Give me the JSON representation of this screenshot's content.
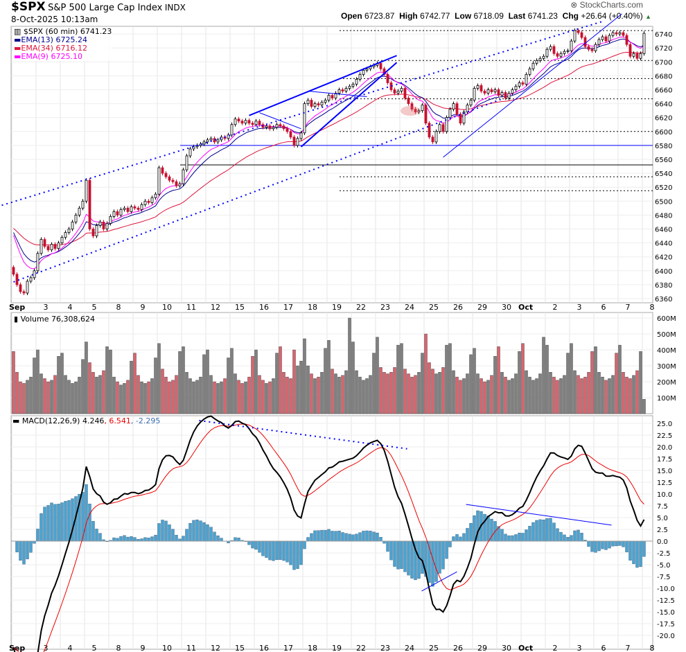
{
  "header": {
    "symbol": "$SPX",
    "name": "S&P 500 Large Cap Index",
    "exchange": "INDX",
    "datetime": "8-Oct-2025 10:13am",
    "brand": "StockCharts.com",
    "open_label": "Open",
    "open": "6723.87",
    "high_label": "High",
    "high": "6742.77",
    "low_label": "Low",
    "low": "6718.09",
    "last_label": "Last",
    "last": "6741.23",
    "chg_label": "Chg",
    "chg": "+26.64 (+0.40%)"
  },
  "legend": {
    "price": "$SPX (60 min) 6741.23",
    "ema13": "EMA(13) 6725.24",
    "ema34": "EMA(34) 6716.12",
    "ema9": "EMA(9) 6725.10",
    "volume": "Volume 76,308,624",
    "macd_label": "MACD(12,26,9) 4.246",
    "macd_signal": ", 6.541",
    "macd_hist": ", -2.295"
  },
  "colors": {
    "up": "#000000",
    "down": "#c8102e",
    "vol_up": "#808080",
    "vol_down": "#d9646e",
    "ema13": "#00008b",
    "ema34": "#dc143c",
    "ema9": "#ff00ff",
    "hist": "#4aa3d0",
    "trend": "#0000ff"
  },
  "chart_data": {
    "type": "candlestick",
    "title": "$SPX S&P 500 Large Cap Index INDX",
    "interval": "60 min",
    "days": [
      "Sep",
      "3",
      "4",
      "5",
      "8",
      "9",
      "10",
      "11",
      "12",
      "15",
      "16",
      "17",
      "18",
      "19",
      "22",
      "23",
      "24",
      "25",
      "26",
      "29",
      "30",
      "Oct",
      "2",
      "3",
      "6",
      "7",
      "8"
    ],
    "closes": [
      [
        6395,
        6380,
        6370,
        6368,
        6385,
        6390,
        6400
      ],
      [
        6425,
        6445,
        6435,
        6430,
        6438,
        6432,
        6440
      ],
      [
        6448,
        6455,
        6460,
        6470,
        6480,
        6490,
        6500
      ],
      [
        6530,
        6460,
        6450,
        6465,
        6470,
        6460,
        6468
      ],
      [
        6478,
        6485,
        6480,
        6488,
        6490,
        6485,
        6492
      ],
      [
        6490,
        6488,
        6495,
        6500,
        6498,
        6505,
        6510
      ],
      [
        6548,
        6540,
        6535,
        6530,
        6528,
        6522,
        6525
      ],
      [
        6545,
        6565,
        6575,
        6578,
        6580,
        6582,
        6585
      ],
      [
        6588,
        6590,
        6585,
        6588,
        6592,
        6590,
        6595
      ],
      [
        6610,
        6618,
        6615,
        6612,
        6616,
        6612,
        6610
      ],
      [
        6615,
        6610,
        6606,
        6608,
        6604,
        6606,
        6610
      ],
      [
        6608,
        6604,
        6600,
        6592,
        6580,
        6590,
        6598
      ],
      [
        6640,
        6645,
        6636,
        6640,
        6638,
        6642,
        6645
      ],
      [
        6652,
        6648,
        6655,
        6660,
        6658,
        6662,
        6665
      ],
      [
        6668,
        6675,
        6682,
        6688,
        6690,
        6693,
        6695
      ],
      [
        6698,
        6690,
        6682,
        6670,
        6660,
        6655,
        6658
      ],
      [
        6662,
        6648,
        6640,
        6632,
        6628,
        6630,
        6638
      ],
      [
        6612,
        6592,
        6585,
        6600,
        6610,
        6600,
        6620
      ],
      [
        6632,
        6640,
        6625,
        6612,
        6628,
        6638,
        6645
      ],
      [
        6662,
        6666,
        6658,
        6655,
        6660,
        6657,
        6660
      ],
      [
        6652,
        6656,
        6648,
        6655,
        6660,
        6665,
        6670
      ],
      [
        6668,
        6682,
        6690,
        6698,
        6702,
        6705,
        6708
      ],
      [
        6718,
        6722,
        6712,
        6708,
        6712,
        6715,
        6716
      ],
      [
        6730,
        6745,
        6742,
        6735,
        6722,
        6718,
        6716
      ],
      [
        6725,
        6732,
        6736,
        6730,
        6738,
        6742,
        6740
      ],
      [
        6742,
        6738,
        6725,
        6708,
        6712,
        6705,
        6712
      ],
      [
        6741
      ]
    ],
    "volumes_millions": [
      [
        390,
        260,
        200,
        190,
        210,
        230,
        350
      ],
      [
        400,
        250,
        220,
        200,
        210,
        240,
        360
      ],
      [
        380,
        240,
        210,
        190,
        200,
        230,
        340
      ],
      [
        450,
        320,
        260,
        230,
        240,
        270,
        420
      ],
      [
        400,
        230,
        200,
        180,
        190,
        210,
        330
      ],
      [
        380,
        240,
        200,
        190,
        200,
        220,
        350
      ],
      [
        440,
        280,
        230,
        200,
        210,
        240,
        390
      ],
      [
        420,
        260,
        220,
        200,
        210,
        230,
        370
      ],
      [
        400,
        240,
        200,
        190,
        200,
        220,
        350
      ],
      [
        410,
        250,
        210,
        190,
        200,
        230,
        360
      ],
      [
        400,
        240,
        210,
        190,
        200,
        220,
        380
      ],
      [
        420,
        260,
        230,
        220,
        400,
        300,
        330
      ],
      [
        470,
        300,
        250,
        220,
        230,
        260,
        410
      ],
      [
        460,
        280,
        250,
        230,
        240,
        270,
        600
      ],
      [
        450,
        270,
        230,
        210,
        220,
        240,
        380
      ],
      [
        480,
        290,
        260,
        250,
        260,
        290,
        430
      ],
      [
        440,
        280,
        250,
        230,
        240,
        260,
        380
      ],
      [
        500,
        320,
        280,
        250,
        260,
        290,
        430
      ],
      [
        440,
        270,
        230,
        210,
        220,
        250,
        370
      ],
      [
        410,
        250,
        220,
        200,
        210,
        240,
        360
      ],
      [
        420,
        260,
        230,
        210,
        220,
        250,
        390
      ],
      [
        440,
        270,
        230,
        210,
        220,
        250,
        480
      ],
      [
        430,
        260,
        230,
        210,
        220,
        240,
        380
      ],
      [
        440,
        270,
        240,
        220,
        230,
        260,
        390
      ],
      [
        420,
        260,
        230,
        210,
        220,
        240,
        380
      ],
      [
        430,
        260,
        230,
        220,
        240,
        270,
        390
      ],
      [
        90
      ]
    ],
    "price_axis": {
      "min": 6360,
      "max": 6740,
      "step": 20
    },
    "volume_axis": {
      "ticks": [
        "100M",
        "200M",
        "300M",
        "400M",
        "500M",
        "600M"
      ],
      "values": [
        100,
        200,
        300,
        400,
        500,
        600
      ]
    },
    "macd_axis": {
      "min": -20,
      "max": 25,
      "step": 2.5
    },
    "horizontal_levels": [
      {
        "price": 6580,
        "style": "solid",
        "color": "#0000ff"
      },
      {
        "price": 6552,
        "style": "solid",
        "color": "#000000"
      },
      {
        "price": 6745,
        "style": "dotted",
        "color": "#000000"
      },
      {
        "price": 6702,
        "style": "dotted",
        "color": "#000000"
      },
      {
        "price": 6676,
        "style": "dotted",
        "color": "#000000"
      },
      {
        "price": 6647,
        "style": "dotted",
        "color": "#000000"
      },
      {
        "price": 6600,
        "style": "dotted",
        "color": "#000000"
      },
      {
        "price": 6535,
        "style": "dotted",
        "color": "#000000"
      },
      {
        "price": 6515,
        "style": "dotted",
        "color": "#000000"
      }
    ],
    "price_trendlines": [
      {
        "from": [
          -3.4,
          6494
        ],
        "to": [
          170.6,
          6759
        ],
        "style": "dotted"
      },
      {
        "from": [
          0,
          6384
        ],
        "to": [
          140.6,
          6646
        ],
        "style": "dotted"
      },
      {
        "from": [
          68,
          6623
        ],
        "to": [
          110.6,
          6709
        ],
        "style": "solid",
        "width": 2
      },
      {
        "from": [
          83,
          6578
        ],
        "to": [
          110.6,
          6699
        ],
        "style": "solid",
        "width": 2
      },
      {
        "from": [
          71,
          6627
        ],
        "to": [
          83,
          6604
        ],
        "style": "solid",
        "width": 1
      },
      {
        "from": [
          85,
          6658
        ],
        "to": [
          102,
          6650
        ],
        "style": "solid",
        "width": 1
      },
      {
        "from": [
          124,
          6563
        ],
        "to": [
          175.6,
          6769
        ],
        "style": "solid",
        "width": 1
      }
    ],
    "macd_trendlines": [
      {
        "from": [
          53.6,
          25.6
        ],
        "to": [
          113.6,
          19.6
        ],
        "style": "dotted"
      },
      {
        "from": [
          130.6,
          7.8
        ],
        "to": [
          172.6,
          3.4
        ],
        "style": "solid"
      },
      {
        "from": [
          117.8,
          -10.6
        ],
        "to": [
          128,
          -6.5
        ],
        "style": "solid"
      }
    ]
  }
}
